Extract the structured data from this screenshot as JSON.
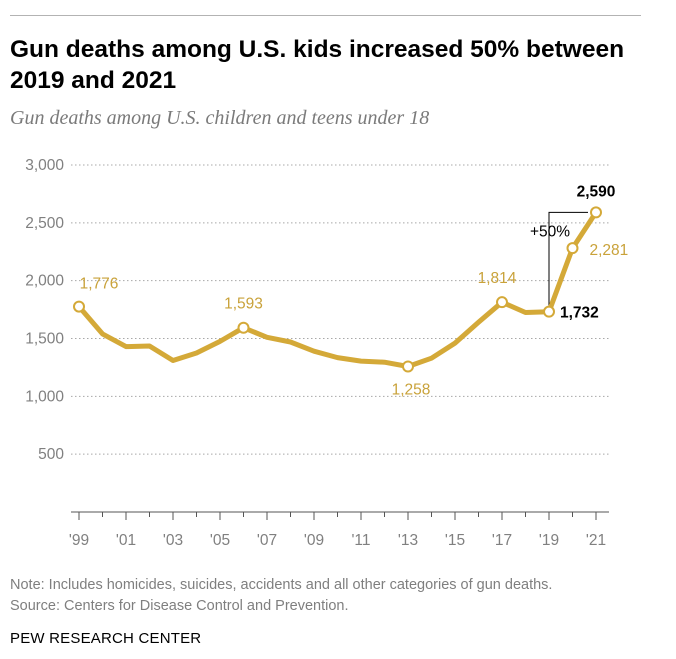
{
  "header": {
    "title": "Gun deaths among U.S. kids increased 50% between 2019 and 2021",
    "subtitle": "Gun deaths among U.S. children and teens under 18"
  },
  "colors": {
    "series": "#d4a938",
    "label_gold": "#c9a23a",
    "axis_text": "#808080",
    "gridline": "#a8a8a8",
    "note_text": "#7f7f7f"
  },
  "chart_data": {
    "type": "line",
    "title": "Gun deaths among U.S. kids increased 50% between 2019 and 2021",
    "subtitle": "Gun deaths among U.S. children and teens under 18",
    "xlabel": "",
    "ylabel": "",
    "x": [
      1999,
      2000,
      2001,
      2002,
      2003,
      2004,
      2005,
      2006,
      2007,
      2008,
      2009,
      2010,
      2011,
      2012,
      2013,
      2014,
      2015,
      2016,
      2017,
      2018,
      2019,
      2020,
      2021
    ],
    "series": [
      {
        "name": "Gun deaths among U.S. children and teens under 18",
        "values": [
          1776,
          1540,
          1430,
          1435,
          1310,
          1375,
          1475,
          1593,
          1510,
          1470,
          1390,
          1335,
          1305,
          1295,
          1258,
          1330,
          1460,
          1640,
          1814,
          1725,
          1732,
          2281,
          2590
        ]
      }
    ],
    "ylim": [
      0,
      3000
    ],
    "y_ticks": [
      500,
      1000,
      1500,
      2000,
      2500,
      3000
    ],
    "y_tick_labels": [
      "500",
      "1,000",
      "1,500",
      "2,000",
      "2,500",
      "3,000"
    ],
    "x_ticks": [
      1999,
      2001,
      2003,
      2005,
      2007,
      2009,
      2011,
      2013,
      2015,
      2017,
      2019,
      2021
    ],
    "x_tick_labels": [
      "'99",
      "'01",
      "'03",
      "'05",
      "'07",
      "'09",
      "'11",
      "'13",
      "'15",
      "'17",
      "'19",
      "'21"
    ],
    "grid": true,
    "legend": "none",
    "highlighted_points": [
      1999,
      2006,
      2013,
      2017,
      2019,
      2020,
      2021
    ],
    "data_labels": [
      {
        "year": 1999,
        "text": "1,776",
        "style": "gold"
      },
      {
        "year": 2006,
        "text": "1,593",
        "style": "gold"
      },
      {
        "year": 2013,
        "text": "1,258",
        "style": "gold"
      },
      {
        "year": 2017,
        "text": "1,814",
        "style": "gold"
      },
      {
        "year": 2019,
        "text": "1,732",
        "style": "bold"
      },
      {
        "year": 2020,
        "text": "2,281",
        "style": "gold"
      },
      {
        "year": 2021,
        "text": "2,590",
        "style": "bold"
      }
    ],
    "annotation": {
      "text": "+50%",
      "from_year": 2019,
      "to_year": 2021
    }
  },
  "footer": {
    "note": "Note: Includes homicides, suicides, accidents and all other categories of gun deaths.",
    "source": "Source: Centers for Disease Control and Prevention.",
    "brand": "PEW RESEARCH CENTER"
  }
}
